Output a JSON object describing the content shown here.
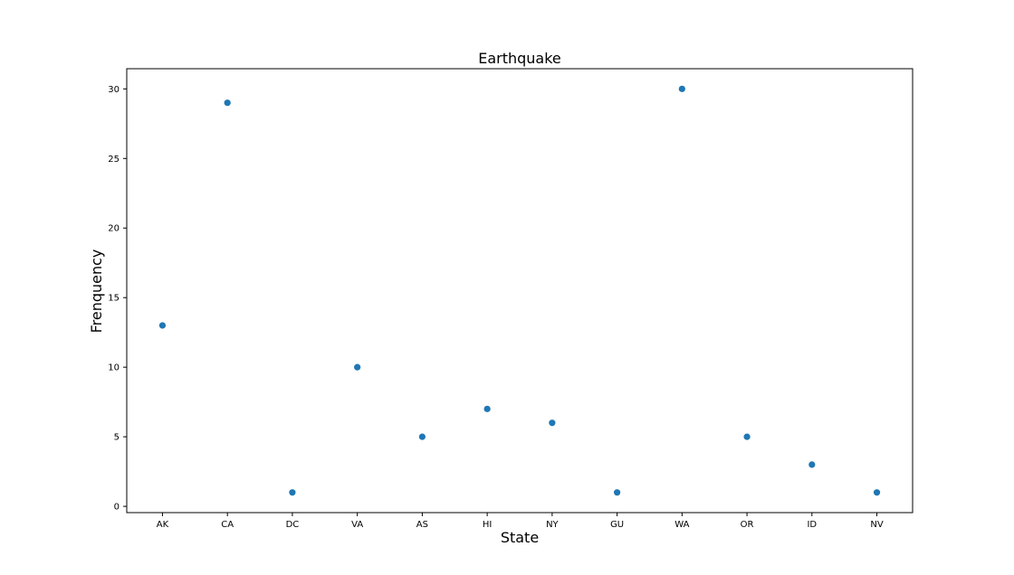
{
  "chart_data": {
    "type": "scatter",
    "title": "Earthquake",
    "xlabel": "State",
    "ylabel": "Frenquency",
    "categories": [
      "AK",
      "CA",
      "DC",
      "VA",
      "AS",
      "HI",
      "NY",
      "GU",
      "WA",
      "OR",
      "ID",
      "NV"
    ],
    "values": [
      13,
      29,
      1,
      10,
      5,
      7,
      6,
      1,
      30,
      5,
      3,
      1
    ],
    "yticks": [
      0,
      5,
      10,
      15,
      20,
      25,
      30
    ],
    "ytick_labels": [
      "0",
      "5",
      "10",
      "15",
      "20",
      "25",
      "30"
    ],
    "ylim": [
      -0.45,
      31.45
    ],
    "grid": false,
    "marker_color": "#1f77b4"
  }
}
